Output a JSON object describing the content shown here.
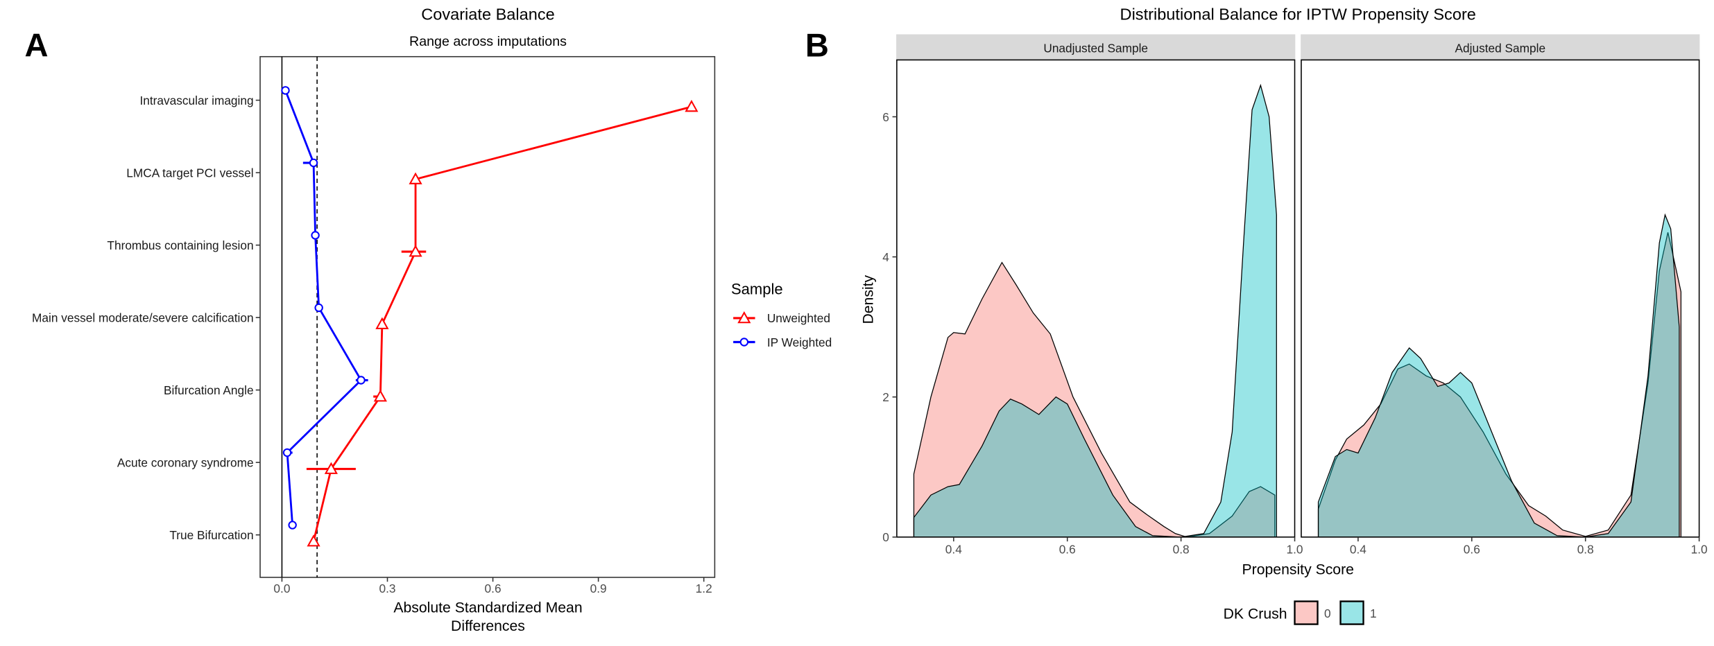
{
  "panel_labels": [
    "A",
    "B"
  ],
  "chart_data": [
    {
      "type": "scatter",
      "title": "Covariate Balance",
      "subtitle": "Range across imputations",
      "xlabel": [
        "Absolute Standardized Mean",
        "Differences"
      ],
      "xlim": [
        -0.05,
        1.22
      ],
      "xticks": [
        0.0,
        0.3,
        0.6,
        0.9,
        1.2
      ],
      "xtick_labels": [
        "0.0",
        "0.3",
        "0.6",
        "0.9",
        "1.2"
      ],
      "threshold": 0.1,
      "categories": [
        "Intravascular imaging",
        "LMCA target PCI vessel",
        "Thrombus containing lesion",
        "Main vessel moderate/severe calcification",
        "Bifurcation Angle",
        "Acute coronary syndrome",
        "True Bifurcation"
      ],
      "legend": {
        "title": "Sample",
        "position": "right"
      },
      "series": [
        {
          "name": "Unweighted",
          "color": "#FF0000",
          "marker": "triangle",
          "values": [
            1.165,
            0.38,
            0.38,
            0.285,
            0.28,
            0.14,
            0.09
          ],
          "ranges": [
            [
              1.165,
              1.165
            ],
            [
              0.38,
              0.38
            ],
            [
              0.34,
              0.41
            ],
            [
              0.285,
              0.285
            ],
            [
              0.26,
              0.29
            ],
            [
              0.07,
              0.21
            ],
            [
              0.09,
              0.09
            ]
          ]
        },
        {
          "name": "IP Weighted",
          "color": "#0000FF",
          "marker": "circle",
          "values": [
            0.01,
            0.09,
            0.095,
            0.105,
            0.225,
            0.015,
            0.03
          ],
          "ranges": [
            [
              0.01,
              0.01
            ],
            [
              0.06,
              0.09
            ],
            [
              0.085,
              0.1
            ],
            [
              0.095,
              0.115
            ],
            [
              0.21,
              0.245
            ],
            [
              0.005,
              0.03
            ],
            [
              0.03,
              0.03
            ]
          ]
        }
      ]
    },
    {
      "type": "area",
      "title": "Distributional Balance for IPTW Propensity Score",
      "xlabel": "Propensity Score",
      "ylabel": "Density",
      "xlim": [
        0.3,
        1.0
      ],
      "ylim": [
        0,
        6.8
      ],
      "xticks": [
        0.4,
        0.6,
        0.8,
        1.0
      ],
      "xtick_labels": [
        "0.4",
        "0.6",
        "0.8",
        "1.0"
      ],
      "yticks": [
        0,
        2,
        4,
        6
      ],
      "ytick_labels": [
        "0",
        "2",
        "4",
        "6"
      ],
      "legend": {
        "title": "DK Crush",
        "position": "bottom",
        "entries": [
          "0",
          "1"
        ]
      },
      "colors": {
        "0": "#F8766D",
        "1": "#00BFC4"
      },
      "panels": [
        {
          "name": "Unadjusted Sample",
          "series": [
            {
              "group": "0",
              "x": [
                0.33,
                0.36,
                0.39,
                0.4,
                0.42,
                0.45,
                0.485,
                0.51,
                0.54,
                0.57,
                0.61,
                0.66,
                0.71,
                0.74,
                0.77,
                0.79,
                0.81,
                0.85,
                0.89,
                0.92,
                0.94,
                0.965
              ],
              "y": [
                0.9,
                2.0,
                2.85,
                2.92,
                2.9,
                3.4,
                3.92,
                3.6,
                3.2,
                2.9,
                2.0,
                1.2,
                0.5,
                0.32,
                0.15,
                0.05,
                0.0,
                0.05,
                0.3,
                0.65,
                0.72,
                0.6
              ]
            },
            {
              "group": "1",
              "x": [
                0.33,
                0.36,
                0.39,
                0.41,
                0.45,
                0.48,
                0.5,
                0.52,
                0.55,
                0.58,
                0.6,
                0.63,
                0.68,
                0.72,
                0.75,
                0.8,
                0.84,
                0.87,
                0.89,
                0.91,
                0.925,
                0.94,
                0.955,
                0.968
              ],
              "y": [
                0.28,
                0.6,
                0.72,
                0.75,
                1.3,
                1.8,
                1.97,
                1.9,
                1.75,
                2.0,
                1.9,
                1.4,
                0.6,
                0.15,
                0.02,
                0.0,
                0.05,
                0.5,
                1.5,
                4.2,
                6.1,
                6.45,
                6.0,
                4.6
              ]
            }
          ]
        },
        {
          "name": "Adjusted Sample",
          "series": [
            {
              "group": "0",
              "x": [
                0.33,
                0.36,
                0.38,
                0.41,
                0.44,
                0.47,
                0.49,
                0.52,
                0.55,
                0.58,
                0.62,
                0.66,
                0.7,
                0.73,
                0.76,
                0.8,
                0.84,
                0.88,
                0.91,
                0.93,
                0.945,
                0.96,
                0.968
              ],
              "y": [
                0.4,
                1.1,
                1.4,
                1.6,
                1.9,
                2.4,
                2.47,
                2.3,
                2.2,
                2.0,
                1.5,
                0.9,
                0.45,
                0.3,
                0.1,
                0.01,
                0.1,
                0.6,
                2.2,
                3.8,
                4.35,
                3.8,
                3.5
              ]
            },
            {
              "group": "1",
              "x": [
                0.33,
                0.36,
                0.38,
                0.4,
                0.43,
                0.46,
                0.49,
                0.51,
                0.54,
                0.56,
                0.58,
                0.6,
                0.63,
                0.67,
                0.71,
                0.75,
                0.8,
                0.84,
                0.88,
                0.91,
                0.93,
                0.94,
                0.95,
                0.965
              ],
              "y": [
                0.5,
                1.15,
                1.25,
                1.2,
                1.7,
                2.35,
                2.7,
                2.55,
                2.15,
                2.2,
                2.35,
                2.2,
                1.6,
                0.8,
                0.2,
                0.02,
                0.0,
                0.05,
                0.5,
                2.3,
                4.2,
                4.6,
                4.4,
                3.0
              ]
            }
          ]
        }
      ]
    }
  ]
}
